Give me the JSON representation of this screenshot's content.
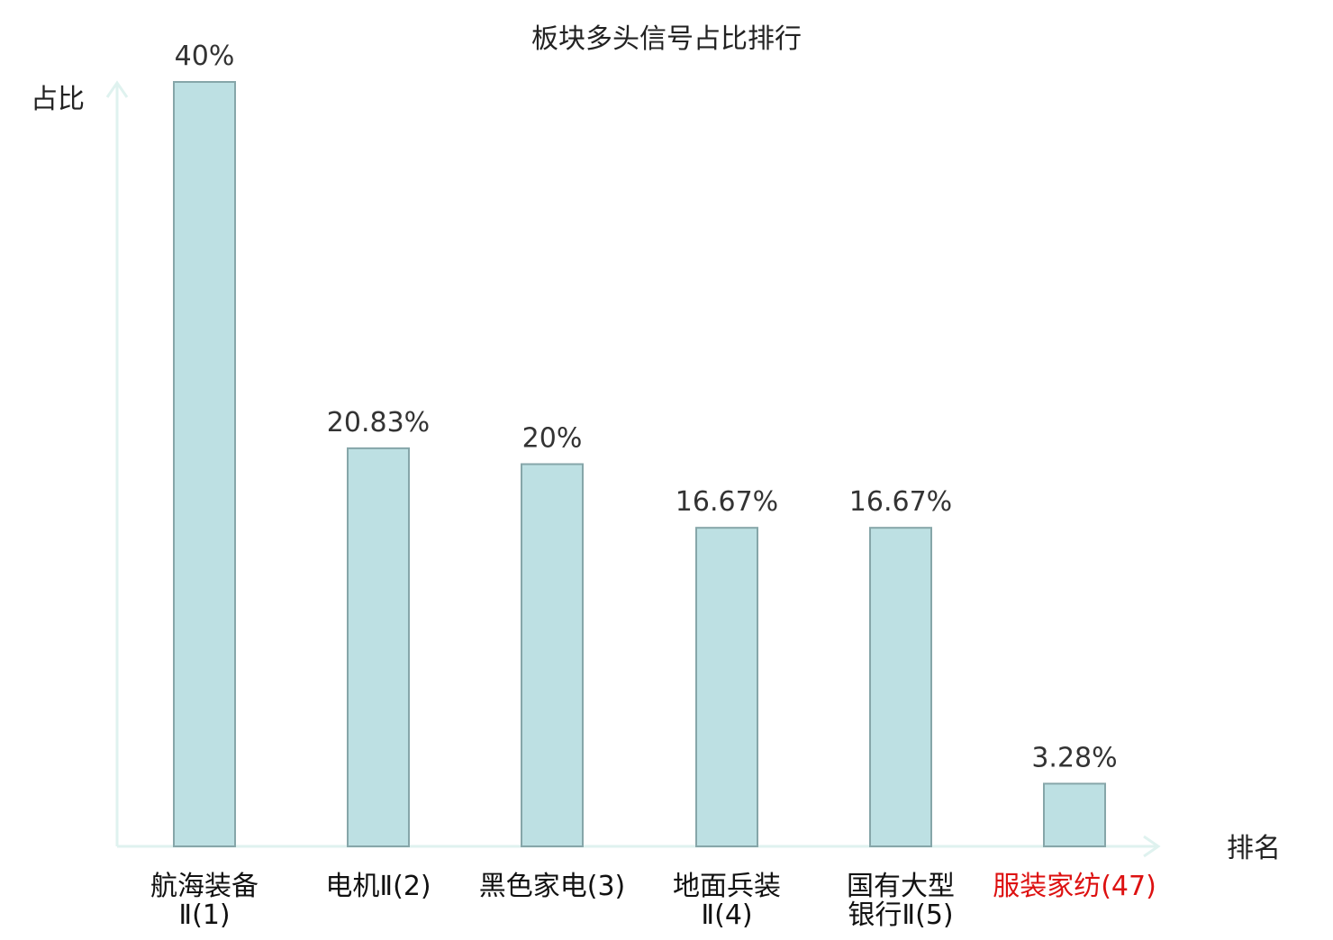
{
  "chart_data": {
    "type": "bar",
    "title": "板块多头信号占比排行",
    "ylabel": "占比",
    "xlabel": "排名",
    "categories": [
      {
        "lines": [
          "航海装备",
          "Ⅱ(1)"
        ],
        "highlight": false
      },
      {
        "lines": [
          "电机Ⅱ(2)"
        ],
        "highlight": false
      },
      {
        "lines": [
          "黑色家电(3)"
        ],
        "highlight": false
      },
      {
        "lines": [
          "地面兵装",
          "Ⅱ(4)"
        ],
        "highlight": false
      },
      {
        "lines": [
          "国有大型",
          "银行Ⅱ(5)"
        ],
        "highlight": false
      },
      {
        "lines": [
          "服装家纺(47)"
        ],
        "highlight": true
      }
    ],
    "values": [
      40,
      20.83,
      20,
      16.67,
      16.67,
      3.28
    ],
    "value_labels": [
      "40%",
      "20.83%",
      "20%",
      "16.67%",
      "16.67%",
      "3.28%"
    ],
    "ylim": [
      0,
      40
    ],
    "grid": false,
    "legend": "none"
  },
  "colors": {
    "bar_fill": "#bde0e3",
    "bar_stroke": "#86a6a9",
    "axis": "#dff2ef",
    "text": "#222222",
    "value_label": "#333333",
    "category_label": "#111111",
    "category_sub": "#444444",
    "highlight": "#dd1111"
  }
}
